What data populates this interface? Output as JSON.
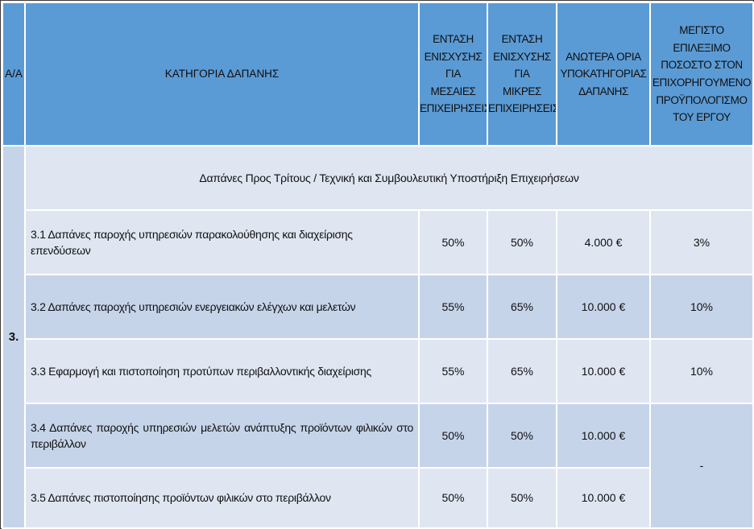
{
  "header": {
    "aa": "Α/Α",
    "category": "ΚΑΤΗΓΟΡΙΑ ΔΑΠΑΝΗΣ",
    "medium_intensity": [
      "ΕΝΤΑΣΗ",
      "ΕΝΙΣΧΥΣΗΣ ΓΙΑ",
      "ΜΕΣΑΙΕΣ",
      "ΕΠΙΧΕΙΡΗΣΕΙΣ"
    ],
    "small_intensity": [
      "ΕΝΤΑΣΗ",
      "ΕΝΙΣΧΥΣΗΣ ΓΙΑ",
      "ΜΙΚΡΕΣ",
      "ΕΠΙΧΕΙΡΗΣΕΙΣ"
    ],
    "upper_limits": [
      "ΑΝΩΤΕΡΑ ΟΡΙΑ",
      "ΥΠΟΚΑΤΗΓΟΡΙΑΣ",
      "ΔΑΠΑΝΗΣ"
    ],
    "max_percentage": [
      "ΜΕΓΙΣΤΟ ΕΠΙΛΕΞΙΜΟ",
      "ΠΟΣΟΣΤΟ ΣΤΟΝ",
      "ΕΠΙΧΟΡΗΓΟΥΜΕΝΟ",
      "ΠΡΟΫΠΟΛΟΓΙΣΜΟ",
      "ΤΟΥ ΕΡΓΟΥ"
    ]
  },
  "group": {
    "number": "3.",
    "title": "Δαπάνες Προς Τρίτους / Τεχνική και Συμβουλευτική Υποστήριξη Επιχειρήσεων"
  },
  "rows": [
    {
      "description": "3.1 Δαπάνες παροχής υπηρεσιών παρακολούθησης και διαχείρισης επενδύσεων",
      "medium": "50%",
      "small": "50%",
      "limit": "4.000 €",
      "max": "3%"
    },
    {
      "description": "3.2 Δαπάνες παροχής υπηρεσιών ενεργειακών ελέγχων και μελετών",
      "medium": "55%",
      "small": "65%",
      "limit": "10.000 €",
      "max": "10%"
    },
    {
      "description": "3.3 Εφαρμογή και πιστοποίηση προτύπων περιβαλλοντικής διαχείρισης",
      "medium": "55%",
      "small": "65%",
      "limit": "10.000 €",
      "max": "10%"
    },
    {
      "description": "3.4 Δαπάνες παροχής υπηρεσιών μελετών ανάπτυξης προϊόντων φιλικών στο περιβάλλον",
      "medium": "50%",
      "small": "50%",
      "limit": "10.000 €",
      "max": "-"
    },
    {
      "description": "3.5 Δαπάνες πιστοποίησης προϊόντων φιλικών στο περιβάλλον",
      "medium": "50%",
      "small": "50%",
      "limit": "10.000 €"
    }
  ]
}
